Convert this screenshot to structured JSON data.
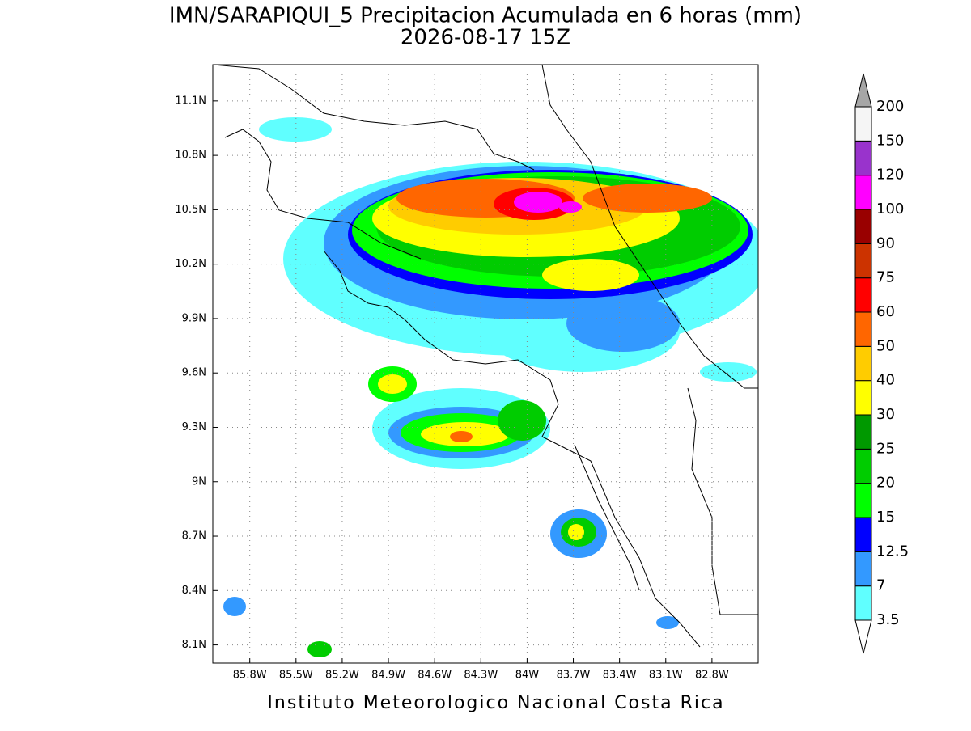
{
  "map": {
    "title": "IMN/SARAPIQUI_5 Precipitacion Acumulada en 6 horas (mm)",
    "subtitle": "2026-08-17 15Z",
    "xlim": [
      -86.04,
      -82.5
    ],
    "ylim": [
      8.0,
      11.3
    ],
    "xticks": [
      {
        "value": -85.8,
        "label": "85.8W"
      },
      {
        "value": -85.5,
        "label": "85.5W"
      },
      {
        "value": -85.2,
        "label": "85.2W"
      },
      {
        "value": -84.9,
        "label": "84.9W"
      },
      {
        "value": -84.6,
        "label": "84.6W"
      },
      {
        "value": -84.3,
        "label": "84.3W"
      },
      {
        "value": -84.0,
        "label": "84W"
      },
      {
        "value": -83.7,
        "label": "83.7W"
      },
      {
        "value": -83.4,
        "label": "83.4W"
      },
      {
        "value": -83.1,
        "label": "83.1W"
      },
      {
        "value": -82.8,
        "label": "82.8W"
      }
    ],
    "yticks": [
      {
        "value": 8.1,
        "label": "8.1N"
      },
      {
        "value": 8.4,
        "label": "8.4N"
      },
      {
        "value": 8.7,
        "label": "8.7N"
      },
      {
        "value": 9.0,
        "label": "9N"
      },
      {
        "value": 9.3,
        "label": "9.3N"
      },
      {
        "value": 9.6,
        "label": "9.6N"
      },
      {
        "value": 9.9,
        "label": "9.9N"
      },
      {
        "value": 10.2,
        "label": "10.2N"
      },
      {
        "value": 10.5,
        "label": "10.5N"
      },
      {
        "value": 10.8,
        "label": "10.8N"
      },
      {
        "value": 11.1,
        "label": "11.1N"
      }
    ],
    "grid": true,
    "colorbar": {
      "levels": [
        3.5,
        7,
        12.5,
        15,
        20,
        25,
        30,
        40,
        50,
        60,
        75,
        90,
        100,
        120,
        150,
        200
      ],
      "colors": [
        "#ffffff",
        "#60ffff",
        "#3399ff",
        "#0000ff",
        "#00ff00",
        "#00cc00",
        "#009900",
        "#ffff00",
        "#ffcc00",
        "#ff6600",
        "#ff0000",
        "#cc3300",
        "#990000",
        "#ff00ff",
        "#9933cc",
        "#f5f5f5",
        "#a6a6a6"
      ]
    },
    "credit": "Instituto Meteorologico Nacional Costa Rica"
  }
}
